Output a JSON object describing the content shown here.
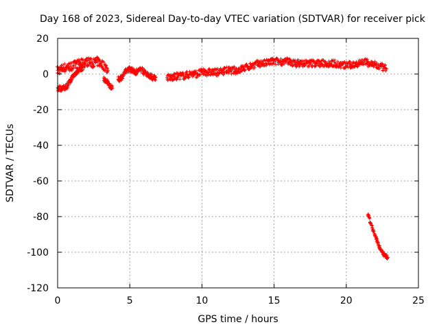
{
  "chart_data": {
    "type": "scatter",
    "title": "Day 168 of 2023, Sidereal Day-to-day VTEC variation (SDTVAR) for receiver pick",
    "xlabel": "GPS time / hours",
    "ylabel": "SDTVAR / TECUs",
    "xlim": [
      0,
      25
    ],
    "ylim": [
      -120,
      20
    ],
    "xticks": [
      "0",
      "5",
      "10",
      "15",
      "20",
      "25"
    ],
    "yticks": [
      "20",
      "0",
      "-20",
      "-40",
      "-60",
      "-80",
      "-100",
      "-120"
    ],
    "grid": true,
    "legend": "none",
    "marker": "plus",
    "color": "#ff0000",
    "series": [
      {
        "values_x": [
          0.0,
          0.3,
          0.6,
          0.9,
          1.2,
          1.5,
          1.8,
          2.1,
          2.4,
          2.7,
          3.0,
          3.3,
          3.5
        ],
        "values_y": [
          2,
          3,
          4,
          4,
          5,
          6,
          6,
          7,
          6,
          7,
          6,
          4,
          2
        ],
        "spread": 2.5
      },
      {
        "values_x": [
          0.0,
          0.2,
          0.4,
          0.6,
          0.8,
          1.0,
          1.2,
          1.4,
          1.6,
          1.8
        ],
        "values_y": [
          -8,
          -8,
          -8,
          -7,
          -5,
          -2,
          0,
          2,
          3,
          4
        ],
        "spread": 1.5
      },
      {
        "values_x": [
          3.2,
          3.35,
          3.5,
          3.65,
          3.8
        ],
        "values_y": [
          -3,
          -4,
          -5,
          -7,
          -8
        ],
        "spread": 1.2
      },
      {
        "values_x": [
          4.2,
          4.4,
          4.6,
          4.8,
          5.0,
          5.2,
          5.4,
          5.6,
          5.8,
          6.0,
          6.2,
          6.4,
          6.6,
          6.8
        ],
        "values_y": [
          -3,
          -2,
          0,
          2,
          3,
          2,
          1,
          2,
          3,
          1,
          0,
          -1,
          -2,
          -2
        ],
        "spread": 1.5
      },
      {
        "values_x": [
          7.6,
          8.0,
          8.4,
          8.8,
          9.2,
          9.6,
          10.0,
          10.4,
          10.8,
          11.2,
          11.6,
          12.0,
          12.4,
          12.8,
          13.2,
          13.6,
          14.0,
          14.4,
          14.8,
          15.2,
          15.6,
          16.0,
          16.4,
          16.8,
          17.2,
          17.6,
          18.0,
          18.4,
          18.8,
          19.2,
          19.6,
          20.0,
          20.4,
          20.8,
          21.2,
          21.6,
          22.0,
          22.4,
          22.8
        ],
        "values_y": [
          -2,
          -2,
          -1,
          -1,
          0,
          0,
          1,
          1,
          1,
          1,
          2,
          2,
          2,
          3,
          4,
          5,
          6,
          6,
          7,
          7,
          7,
          7,
          6,
          6,
          6,
          6,
          6,
          6,
          6,
          6,
          5,
          5,
          5,
          6,
          7,
          6,
          5,
          4,
          3
        ],
        "spread": 2
      },
      {
        "values_x": [
          21.5,
          21.7,
          21.9,
          22.1,
          22.3,
          22.5,
          22.7,
          22.9
        ],
        "values_y": [
          -79,
          -84,
          -89,
          -93,
          -97,
          -100,
          -102,
          -103
        ],
        "spread": 1
      }
    ]
  }
}
